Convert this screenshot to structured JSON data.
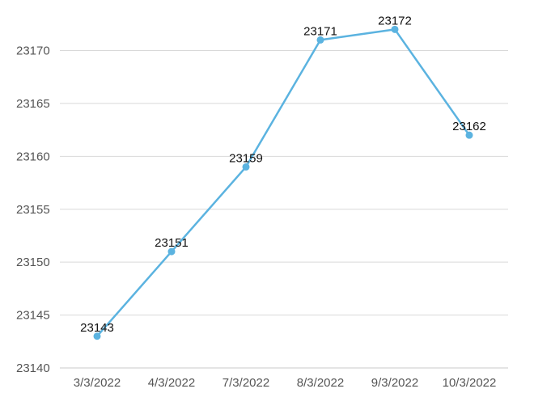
{
  "chart_data": {
    "type": "line",
    "title": "",
    "xlabel": "",
    "ylabel": "",
    "categories": [
      "3/3/2022",
      "4/3/2022",
      "7/3/2022",
      "8/3/2022",
      "9/3/2022",
      "10/3/2022"
    ],
    "series": [
      {
        "values": [
          23143,
          23151,
          23159,
          23171,
          23172,
          23162
        ],
        "color": "#5bb3e0"
      }
    ],
    "y_ticks": [
      23140,
      23145,
      23150,
      23155,
      23160,
      23165,
      23170
    ],
    "ylim": [
      23140,
      23172
    ],
    "grid": true,
    "legend": "none",
    "data_labels": true
  }
}
